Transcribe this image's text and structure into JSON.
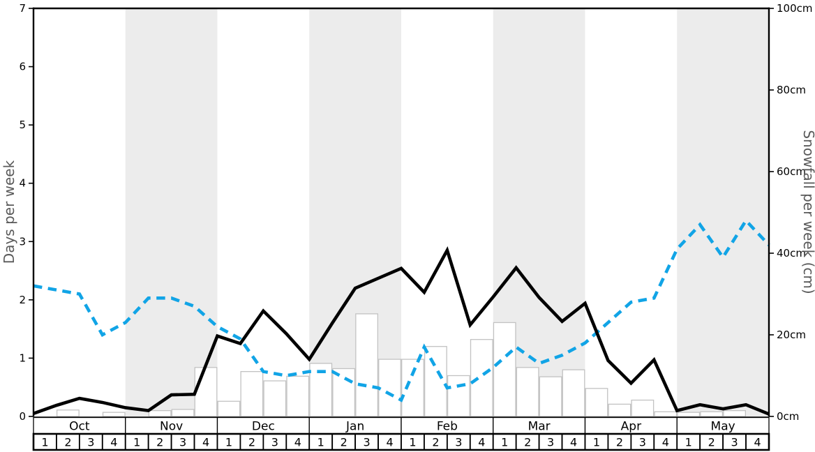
{
  "chart_data": {
    "type": "line",
    "title": "",
    "x": {
      "months": [
        "Oct",
        "Nov",
        "Dec",
        "Jan",
        "Feb",
        "Mar",
        "Apr",
        "May"
      ],
      "weeks_per_month": [
        "1",
        "2",
        "3",
        "4"
      ]
    },
    "left_axis": {
      "label": "Days per week",
      "min": 0,
      "max": 7,
      "ticks": [
        0,
        1,
        2,
        3,
        4,
        5,
        6,
        7
      ]
    },
    "right_axis": {
      "label": "Snowfall per week (cm)",
      "min": 0,
      "max": 100,
      "tick_values": [
        0,
        20,
        40,
        60,
        80,
        100
      ],
      "tick_labels": [
        "0cm",
        "20cm",
        "40cm",
        "60cm",
        "80cm",
        "100cm"
      ]
    },
    "series": [
      {
        "name": "days-per-week-line",
        "type": "line",
        "style": "solid",
        "color": "#000000",
        "axis": "left",
        "unit": "days",
        "values": [
          0.05,
          0.19,
          0.31,
          0.24,
          0.15,
          0.1,
          0.37,
          0.38,
          1.38,
          1.25,
          1.81,
          1.42,
          0.98,
          1.6,
          2.2,
          2.37,
          2.54,
          2.13,
          2.85,
          1.57,
          2.05,
          2.55,
          2.04,
          1.63,
          1.94,
          0.96,
          0.57,
          0.97,
          0.1,
          0.2,
          0.13,
          0.2
        ],
        "right_edge_end_value": 0.04
      },
      {
        "name": "snowfall-per-week-line",
        "type": "line",
        "style": "dashed",
        "color": "#11a4e6",
        "axis": "right",
        "unit": "cm",
        "values": [
          32,
          31,
          30,
          20,
          23,
          29,
          29,
          27,
          22,
          19,
          11,
          10,
          11,
          11,
          8,
          7,
          4,
          17,
          7,
          8,
          12,
          17,
          13,
          15,
          18,
          23,
          28,
          29,
          41,
          47,
          39,
          48
        ],
        "right_edge_end_value": 42
      },
      {
        "name": "weekly-bars",
        "type": "bar",
        "fill": "#ffffff",
        "stroke": "#c2c2c2",
        "axis": "left",
        "unit": "days",
        "values": [
          0,
          0.11,
          0,
          0.07,
          0,
          0.1,
          0.12,
          0.84,
          0.26,
          0.77,
          0.61,
          0.69,
          0.91,
          0.82,
          1.76,
          0.98,
          0.98,
          1.2,
          0.7,
          1.32,
          1.61,
          0.84,
          0.68,
          0.8,
          0.48,
          0.21,
          0.28,
          0.08,
          0.07,
          0.08,
          0.1,
          0
        ]
      }
    ],
    "shaded_months": [
      "Nov",
      "Jan",
      "Mar",
      "May"
    ],
    "shade_color": "#ececec",
    "grid": false,
    "legend": false,
    "axis_title_color": "#5a5a5a"
  }
}
